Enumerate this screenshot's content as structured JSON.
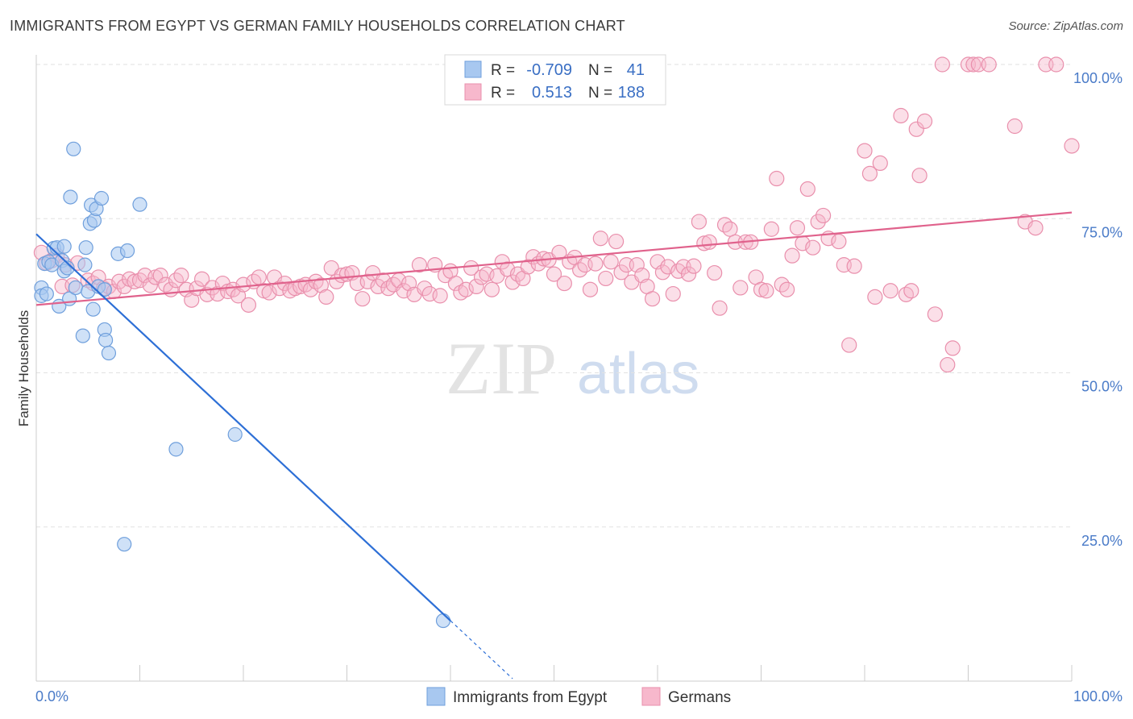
{
  "title": "IMMIGRANTS FROM EGYPT VS GERMAN FAMILY HOUSEHOLDS CORRELATION CHART",
  "source": "Source: ZipAtlas.com",
  "watermark": {
    "zip": "ZIP",
    "atlas": "atlas"
  },
  "colors": {
    "blue_fill": "#a8c8f0",
    "blue_stroke": "#6f9fdc",
    "blue_line": "#2d6fd6",
    "pink_fill": "#f7b8cc",
    "pink_stroke": "#e98fac",
    "pink_line": "#e0628c",
    "tick_blue": "#4a7bc8"
  },
  "legend": {
    "rows": [
      {
        "r_label": "R =",
        "r_value": "-0.709",
        "n_label": "N =",
        "n_value": "41"
      },
      {
        "r_label": "R =",
        "r_value": "0.513",
        "n_label": "N =",
        "n_value": "188"
      }
    ]
  },
  "bottom_legend": {
    "series1": "Immigrants from Egypt",
    "series2": "Germans"
  },
  "chart_data": {
    "type": "scatter",
    "ylabel": "Family Households",
    "xlim": [
      0,
      100
    ],
    "ylim": [
      0,
      100
    ],
    "x_tick_labels": [
      "0.0%",
      "100.0%"
    ],
    "y_tick_labels": [
      {
        "value": 100,
        "label": "100.0%"
      },
      {
        "value": 75,
        "label": "75.0%"
      },
      {
        "value": 50,
        "label": "50.0%"
      },
      {
        "value": 25,
        "label": "25.0%"
      }
    ],
    "grid": true,
    "series": [
      {
        "name": "Immigrants from Egypt",
        "trend": {
          "x0": 0,
          "y0": 72.5,
          "x1": 40,
          "y1": 9.8,
          "dash_to_x": 46
        },
        "points": [
          [
            0.5,
            63.8
          ],
          [
            0.5,
            62.5
          ],
          [
            0.8,
            67.7
          ],
          [
            1.0,
            62.8
          ],
          [
            1.2,
            68.0
          ],
          [
            1.5,
            67.5
          ],
          [
            1.7,
            70.2
          ],
          [
            2.0,
            70.3
          ],
          [
            2.2,
            60.8
          ],
          [
            2.5,
            68.2
          ],
          [
            2.7,
            70.5
          ],
          [
            2.7,
            66.5
          ],
          [
            3.0,
            67.0
          ],
          [
            3.2,
            62.0
          ],
          [
            3.3,
            78.5
          ],
          [
            3.6,
            86.3
          ],
          [
            3.8,
            63.8
          ],
          [
            4.5,
            56.0
          ],
          [
            4.7,
            67.5
          ],
          [
            4.8,
            70.3
          ],
          [
            5.0,
            63.2
          ],
          [
            5.2,
            74.2
          ],
          [
            5.3,
            77.2
          ],
          [
            5.5,
            60.3
          ],
          [
            5.6,
            74.7
          ],
          [
            5.8,
            76.6
          ],
          [
            6.0,
            64.0
          ],
          [
            6.3,
            78.3
          ],
          [
            6.6,
            63.5
          ],
          [
            6.6,
            57.0
          ],
          [
            6.7,
            55.3
          ],
          [
            7.0,
            53.2
          ],
          [
            7.9,
            69.3
          ],
          [
            8.5,
            22.2
          ],
          [
            8.8,
            69.8
          ],
          [
            10.0,
            77.3
          ],
          [
            13.5,
            37.6
          ],
          [
            19.2,
            40.0
          ],
          [
            39.3,
            9.8
          ]
        ]
      },
      {
        "name": "Germans",
        "trend": {
          "x0": 0,
          "y0": 61.0,
          "x1": 100,
          "y1": 76.0
        },
        "points": [
          [
            0.5,
            69.5
          ],
          [
            1.0,
            67.8
          ],
          [
            1.5,
            68.2
          ],
          [
            2.0,
            69.0
          ],
          [
            2.5,
            64.0
          ],
          [
            2.8,
            67.5
          ],
          [
            3.5,
            64.2
          ],
          [
            4.0,
            67.8
          ],
          [
            5.0,
            65.0
          ],
          [
            5.5,
            64.5
          ],
          [
            6.0,
            65.5
          ],
          [
            6.5,
            63.7
          ],
          [
            7.0,
            64.0
          ],
          [
            7.5,
            63.2
          ],
          [
            8.0,
            64.8
          ],
          [
            8.5,
            64.0
          ],
          [
            9.0,
            65.2
          ],
          [
            9.5,
            64.8
          ],
          [
            10.0,
            65.0
          ],
          [
            10.5,
            65.8
          ],
          [
            11.0,
            64.2
          ],
          [
            11.5,
            65.5
          ],
          [
            12.0,
            65.8
          ],
          [
            12.5,
            64.3
          ],
          [
            13.0,
            63.5
          ],
          [
            13.5,
            65.0
          ],
          [
            14.0,
            65.8
          ],
          [
            14.5,
            63.5
          ],
          [
            15.0,
            61.8
          ],
          [
            15.5,
            63.7
          ],
          [
            16.0,
            65.2
          ],
          [
            16.5,
            62.7
          ],
          [
            17.0,
            63.8
          ],
          [
            17.5,
            62.8
          ],
          [
            18.0,
            64.5
          ],
          [
            18.5,
            63.2
          ],
          [
            19.0,
            63.5
          ],
          [
            19.5,
            62.5
          ],
          [
            20.0,
            64.3
          ],
          [
            20.5,
            61.0
          ],
          [
            21.0,
            64.8
          ],
          [
            21.5,
            65.5
          ],
          [
            22.0,
            63.3
          ],
          [
            22.5,
            63.0
          ],
          [
            23.0,
            65.5
          ],
          [
            23.5,
            63.7
          ],
          [
            24.0,
            64.5
          ],
          [
            24.5,
            63.3
          ],
          [
            25.0,
            63.7
          ],
          [
            25.5,
            64.0
          ],
          [
            26.0,
            64.3
          ],
          [
            26.5,
            63.5
          ],
          [
            27.0,
            64.8
          ],
          [
            27.5,
            64.2
          ],
          [
            28.0,
            62.3
          ],
          [
            28.5,
            67.0
          ],
          [
            29.0,
            64.8
          ],
          [
            29.5,
            65.8
          ],
          [
            30.0,
            66.0
          ],
          [
            30.5,
            66.2
          ],
          [
            31.0,
            64.5
          ],
          [
            31.5,
            62.0
          ],
          [
            32.0,
            64.8
          ],
          [
            32.5,
            66.2
          ],
          [
            33.0,
            64.0
          ],
          [
            33.5,
            65.0
          ],
          [
            34.0,
            63.7
          ],
          [
            34.5,
            64.3
          ],
          [
            35.0,
            65.0
          ],
          [
            35.5,
            63.3
          ],
          [
            36.0,
            64.5
          ],
          [
            36.5,
            62.7
          ],
          [
            37.0,
            67.5
          ],
          [
            37.5,
            63.7
          ],
          [
            38.0,
            62.8
          ],
          [
            38.5,
            67.5
          ],
          [
            39.0,
            62.5
          ],
          [
            39.5,
            65.8
          ],
          [
            40.0,
            66.5
          ],
          [
            40.5,
            64.5
          ],
          [
            41.0,
            63.0
          ],
          [
            41.5,
            63.5
          ],
          [
            42.0,
            67.0
          ],
          [
            42.5,
            64.0
          ],
          [
            43.0,
            65.5
          ],
          [
            43.5,
            66.0
          ],
          [
            44.0,
            63.5
          ],
          [
            44.5,
            65.7
          ],
          [
            45.0,
            68.0
          ],
          [
            45.5,
            66.8
          ],
          [
            46.0,
            64.7
          ],
          [
            46.5,
            66.0
          ],
          [
            47.0,
            65.3
          ],
          [
            47.5,
            67.2
          ],
          [
            48.0,
            68.8
          ],
          [
            48.5,
            67.7
          ],
          [
            49.0,
            68.5
          ],
          [
            49.5,
            68.3
          ],
          [
            50.0,
            66.0
          ],
          [
            50.5,
            69.5
          ],
          [
            51.0,
            64.5
          ],
          [
            51.5,
            68.0
          ],
          [
            52.0,
            68.7
          ],
          [
            52.5,
            66.7
          ],
          [
            53.0,
            67.5
          ],
          [
            53.5,
            63.5
          ],
          [
            54.0,
            67.7
          ],
          [
            54.5,
            71.8
          ],
          [
            55.0,
            65.3
          ],
          [
            55.5,
            68.0
          ],
          [
            56.0,
            71.3
          ],
          [
            56.5,
            66.3
          ],
          [
            57.0,
            67.5
          ],
          [
            57.5,
            64.7
          ],
          [
            58.0,
            67.5
          ],
          [
            58.5,
            65.8
          ],
          [
            59.0,
            64.0
          ],
          [
            59.5,
            62.0
          ],
          [
            60.0,
            68.0
          ],
          [
            60.5,
            66.3
          ],
          [
            61.0,
            67.2
          ],
          [
            61.5,
            62.8
          ],
          [
            62.0,
            66.5
          ],
          [
            62.5,
            67.2
          ],
          [
            63.0,
            66.0
          ],
          [
            63.5,
            67.3
          ],
          [
            64.0,
            74.5
          ],
          [
            64.5,
            71.0
          ],
          [
            65.0,
            71.2
          ],
          [
            65.5,
            66.2
          ],
          [
            66.0,
            60.5
          ],
          [
            66.5,
            74.0
          ],
          [
            67.0,
            73.3
          ],
          [
            67.5,
            71.2
          ],
          [
            68.0,
            63.8
          ],
          [
            68.5,
            71.2
          ],
          [
            69.0,
            71.2
          ],
          [
            69.5,
            65.5
          ],
          [
            70.0,
            63.5
          ],
          [
            70.5,
            63.3
          ],
          [
            71.0,
            73.3
          ],
          [
            71.5,
            81.5
          ],
          [
            72.0,
            64.3
          ],
          [
            72.5,
            63.5
          ],
          [
            73.0,
            69.0
          ],
          [
            73.5,
            73.5
          ],
          [
            74.0,
            71.0
          ],
          [
            74.5,
            79.8
          ],
          [
            75.0,
            70.3
          ],
          [
            75.5,
            74.5
          ],
          [
            76.0,
            75.5
          ],
          [
            76.5,
            71.8
          ],
          [
            77.5,
            71.3
          ],
          [
            78.0,
            67.5
          ],
          [
            78.5,
            54.5
          ],
          [
            79.0,
            67.3
          ],
          [
            80.0,
            86.0
          ],
          [
            80.5,
            82.3
          ],
          [
            81.0,
            62.3
          ],
          [
            81.5,
            84.0
          ],
          [
            82.5,
            63.3
          ],
          [
            83.5,
            91.7
          ],
          [
            84.0,
            62.7
          ],
          [
            84.5,
            63.3
          ],
          [
            85.0,
            89.5
          ],
          [
            85.3,
            82.0
          ],
          [
            85.8,
            90.8
          ],
          [
            86.8,
            59.5
          ],
          [
            87.5,
            100.0
          ],
          [
            88.0,
            51.3
          ],
          [
            88.5,
            54.0
          ],
          [
            90.0,
            100.0
          ],
          [
            90.5,
            100.0
          ],
          [
            91.0,
            100.0
          ],
          [
            92.0,
            100.0
          ],
          [
            94.5,
            90.0
          ],
          [
            95.5,
            74.5
          ],
          [
            96.5,
            73.5
          ],
          [
            97.5,
            100.0
          ],
          [
            98.5,
            100.0
          ],
          [
            100.0,
            86.8
          ]
        ]
      }
    ]
  }
}
